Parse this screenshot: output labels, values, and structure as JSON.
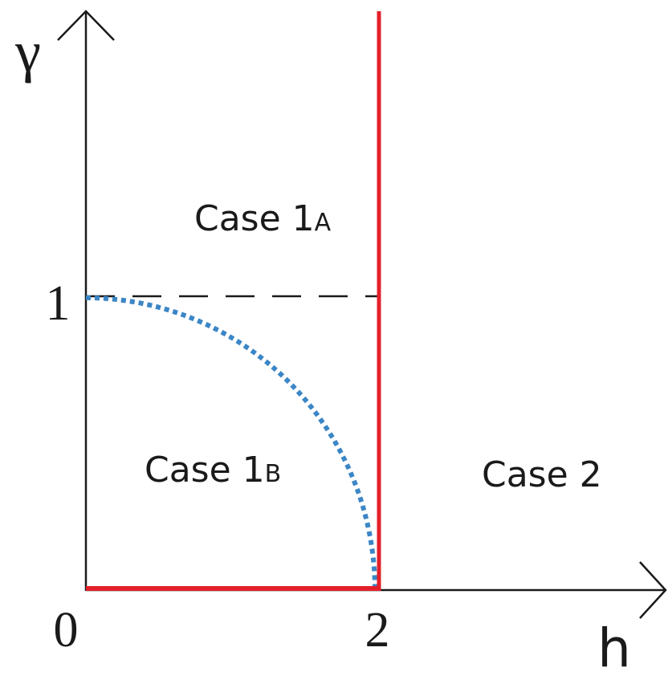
{
  "axes": {
    "y_label": "γ",
    "x_label": "h"
  },
  "ticks": {
    "origin": "0",
    "y_one": "1",
    "x_two": "2"
  },
  "regions": [
    {
      "label": "Case 1",
      "subscript": "A"
    },
    {
      "label": "Case 1",
      "subscript": "B"
    },
    {
      "label": "Case 2"
    }
  ]
}
